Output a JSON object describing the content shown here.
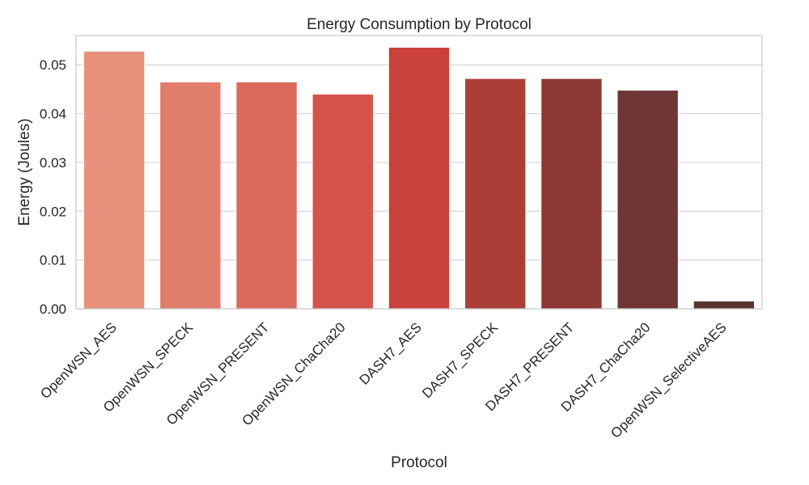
{
  "chart_data": {
    "type": "bar",
    "title": "Energy Consumption by Protocol",
    "xlabel": "Protocol",
    "ylabel": "Energy (Joules)",
    "ylim": [
      0,
      0.056
    ],
    "yticks": [
      "0.00",
      "0.01",
      "0.02",
      "0.03",
      "0.04",
      "0.05"
    ],
    "grid": "horizontal",
    "categories": [
      "OpenWSN_AES",
      "OpenWSN_SPECK",
      "OpenWSN_PRESENT",
      "OpenWSN_ChaCha20",
      "DASH7_AES",
      "DASH7_SPECK",
      "DASH7_PRESENT",
      "DASH7_ChaCha20",
      "OpenWSN_SelectiveAES"
    ],
    "values": [
      0.0528,
      0.0465,
      0.0465,
      0.044,
      0.0536,
      0.0472,
      0.0472,
      0.0448,
      0.0016
    ],
    "colors": [
      "#e8927e",
      "#e07d6b",
      "#dc6a5c",
      "#d4544b",
      "#c9413a",
      "#ac3e38",
      "#8d3836",
      "#6e3735",
      "#5a3331"
    ]
  }
}
